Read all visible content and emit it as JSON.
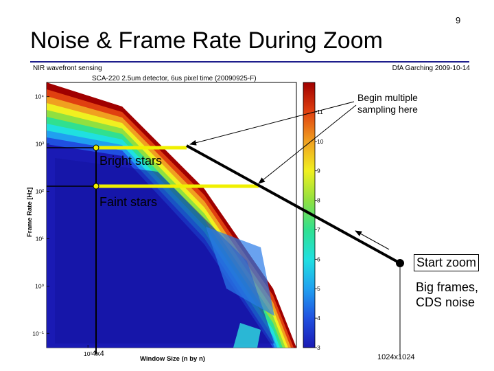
{
  "slide": {
    "number": "9",
    "title": "Noise & Frame Rate During Zoom",
    "footer_left": "NIR wavefront sensing",
    "footer_right": "DfA Garching 2009-10-14"
  },
  "chart_data": {
    "type": "heatmap",
    "title": "SCA-220 2.5um detector, 6us pixel time (20090925-F)",
    "xlabel": "Window Size (n by n)",
    "ylabel": "Frame Rate [Hz]",
    "x_scale": "log",
    "y_scale": "log",
    "xlim": [
      4,
      1024
    ],
    "ylim": [
      0.05,
      20000
    ],
    "x_ticks": [
      {
        "value": 10,
        "label": "10¹"
      }
    ],
    "y_ticks": [
      {
        "value": 10000,
        "label": "10⁴"
      },
      {
        "value": 1000,
        "label": "10³"
      },
      {
        "value": 100,
        "label": "10²"
      },
      {
        "value": 10,
        "label": "10¹"
      },
      {
        "value": 1,
        "label": "10⁰"
      },
      {
        "value": 0.1,
        "label": "10⁻¹"
      }
    ],
    "colorbar": {
      "min": 3,
      "max": 12,
      "ticks": [
        3,
        4,
        5,
        6,
        7,
        8,
        9,
        10,
        11
      ]
    },
    "colorscale": [
      "#1a1ab4",
      "#2050e0",
      "#20a0f0",
      "#20e0e0",
      "#30e090",
      "#90e040",
      "#f0f020",
      "#f0a020",
      "#e04010",
      "#a00000"
    ]
  },
  "annotations": {
    "bright_stars": "Bright stars",
    "faint_stars": "Faint stars",
    "begin_multiple_line1": "Begin multiple",
    "begin_multiple_line2": "sampling here",
    "start_zoom": "Start zoom",
    "big_frames_line1": "Big frames,",
    "big_frames_line2": "CDS noise",
    "window_4x4": "4x4",
    "window_1024": "1024x1024"
  },
  "colors": {
    "title_rule": "#1e1e8c",
    "highlight": "#f0f000"
  }
}
